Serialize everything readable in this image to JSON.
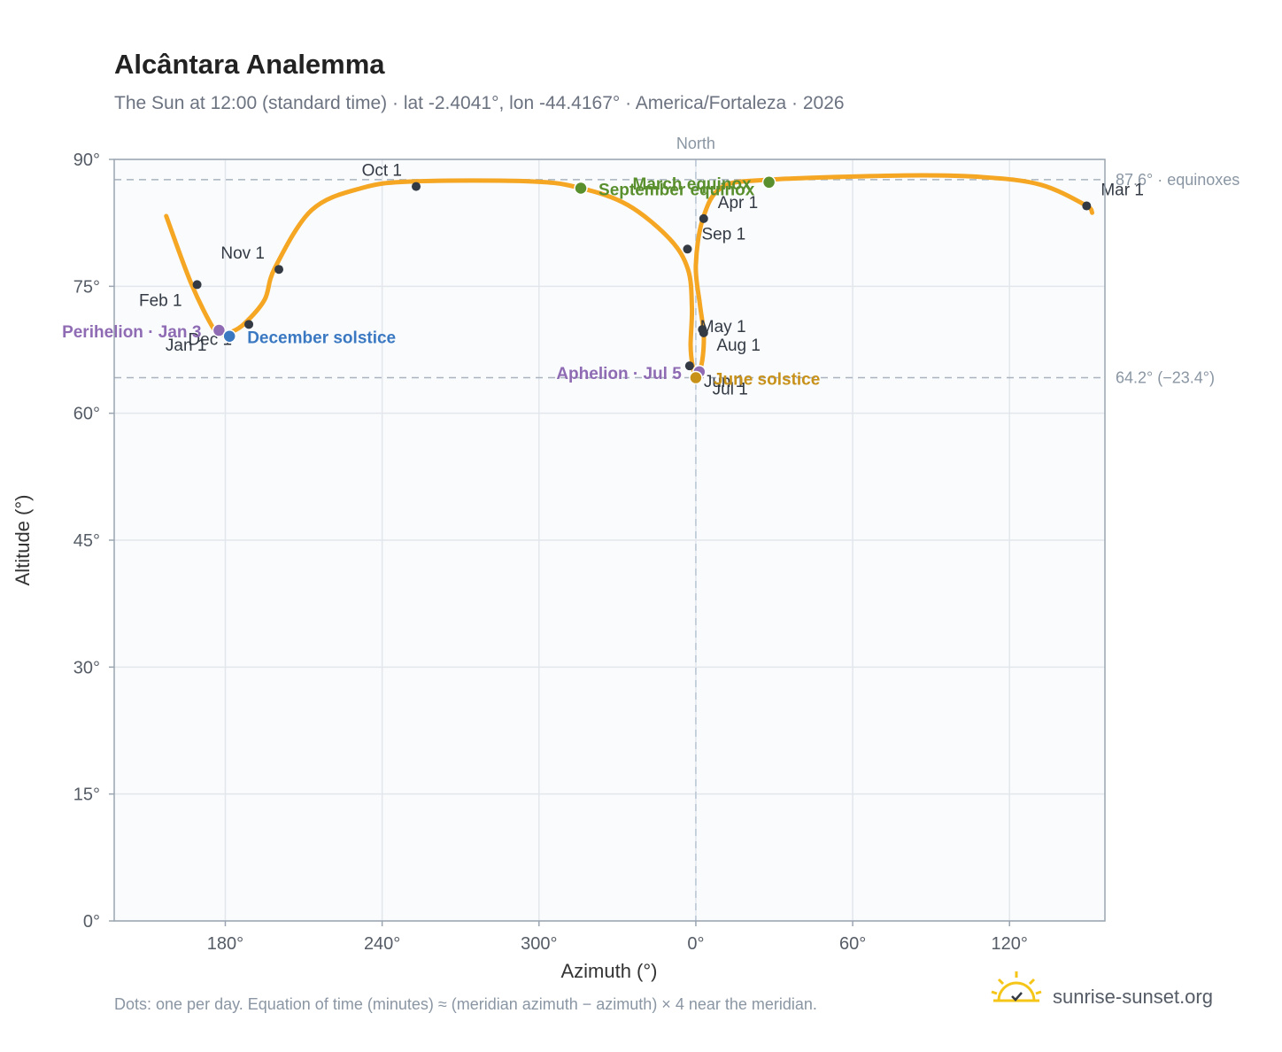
{
  "title": "Alcântara Analemma",
  "subtitle": "The Sun at 12:00 (standard time) · lat -2.4041°, lon -44.4167° · America/Fortaleza · 2026",
  "footnote": "Dots: one per day. Equation of time (minutes) ≈ (meridian azimuth − azimuth) × 4 near the meridian.",
  "brand": {
    "name": "sunrise-sunset.org",
    "icon": "sun-logo-icon"
  },
  "colors": {
    "curve": "#f5a623",
    "month_marker": "#333a44",
    "perihelion": "#8e6bb3",
    "aphelion": "#8e6bb3",
    "december_solstice": "#3a78c2",
    "june_solstice": "#c8921a",
    "equinox": "#5a8f2e",
    "plot_bg": "#f9fbfd",
    "grid": "#e3e7ec",
    "ref_line": "#a9b4bf"
  },
  "chart_data": {
    "type": "scatter",
    "xlabel": "Azimuth (°)",
    "ylabel": "Altitude (°)",
    "x_axis": {
      "range_unwrapped": [
        137.5,
        516.5
      ],
      "ticks_unwrapped": [
        180,
        240,
        300,
        360,
        420,
        480
      ],
      "tick_labels": [
        "180°",
        "240°",
        "300°",
        "0°",
        "60°",
        "120°"
      ]
    },
    "y_axis": {
      "range": [
        0,
        90
      ],
      "ticks": [
        0,
        15,
        30,
        45,
        60,
        75,
        90
      ],
      "tick_labels": [
        "0°",
        "15°",
        "30°",
        "45°",
        "60°",
        "75°",
        "90°"
      ]
    },
    "grid": true,
    "reference_lines": [
      {
        "orientation": "horizontal",
        "value": 87.6,
        "label": "87.6° · equinoxes"
      },
      {
        "orientation": "horizontal",
        "value": 64.2,
        "label": "64.2° (−23.4°)"
      },
      {
        "orientation": "vertical",
        "value": 360,
        "label": "North"
      }
    ],
    "series": [
      {
        "points": [
          [
            157.4,
            83.3
          ],
          [
            167.0,
            75.3
          ],
          [
            175.5,
            70.0
          ],
          [
            179.0,
            69.3
          ],
          [
            181.6,
            69.5
          ],
          [
            187.0,
            70.5
          ],
          [
            195.0,
            73.4
          ],
          [
            199.0,
            77.2
          ],
          [
            213.0,
            84.0
          ],
          [
            232.0,
            86.6
          ],
          [
            252.0,
            87.4
          ],
          [
            297.0,
            87.4
          ],
          [
            316.0,
            86.6
          ],
          [
            334.0,
            84.6
          ],
          [
            350.0,
            80.6
          ],
          [
            357.0,
            77.0
          ],
          [
            358.5,
            72.5
          ],
          [
            358.0,
            68.0
          ],
          [
            358.8,
            65.5
          ],
          [
            360.0,
            64.5
          ],
          [
            361.4,
            64.9
          ],
          [
            362.7,
            66.8
          ],
          [
            363.0,
            69.5
          ],
          [
            361.5,
            73.0
          ],
          [
            360.0,
            77.5
          ],
          [
            362.7,
            83.0
          ],
          [
            370.0,
            86.7
          ],
          [
            388.0,
            87.6
          ],
          [
            440.0,
            88.1
          ],
          [
            470.0,
            87.9
          ],
          [
            492.0,
            87.0
          ],
          [
            509.0,
            84.6
          ],
          [
            511.6,
            83.7
          ]
        ]
      }
    ],
    "month_markers": [
      {
        "label": "Jan 1",
        "x": 177.6,
        "y": 69.8
      },
      {
        "label": "Feb 1",
        "x": 169.2,
        "y": 75.2
      },
      {
        "label": "Mar 1",
        "x": 509.5,
        "y": 84.5
      },
      {
        "label": "Apr 1",
        "x": 363.0,
        "y": 83.0
      },
      {
        "label": "May 1",
        "x": 363.0,
        "y": 69.5
      },
      {
        "label": "Jun 1",
        "x": 357.6,
        "y": 65.6
      },
      {
        "label": "Jul 1",
        "x": 359.9,
        "y": 64.3
      },
      {
        "label": "Aug 1",
        "x": 362.5,
        "y": 69.9
      },
      {
        "label": "Sep 1",
        "x": 356.8,
        "y": 79.4
      },
      {
        "label": "Oct 1",
        "x": 253.0,
        "y": 86.8
      },
      {
        "label": "Nov 1",
        "x": 200.5,
        "y": 77.0
      },
      {
        "label": "Dec 1",
        "x": 189.0,
        "y": 70.5
      }
    ],
    "events": [
      {
        "label": "Perihelion · Jan 3",
        "x": 177.6,
        "y": 69.8,
        "color_key": "perihelion"
      },
      {
        "label": "December solstice",
        "x": 181.6,
        "y": 69.1,
        "color_key": "december_solstice"
      },
      {
        "label": "March equinox",
        "x": 388.0,
        "y": 87.3,
        "color_key": "equinox"
      },
      {
        "label": "September equinox",
        "x": 316.0,
        "y": 86.6,
        "color_key": "equinox"
      },
      {
        "label": "Aphelion · Jul 5",
        "x": 361.3,
        "y": 64.9,
        "color_key": "aphelion"
      },
      {
        "label": "June solstice",
        "x": 360.0,
        "y": 64.2,
        "color_key": "june_solstice"
      }
    ]
  }
}
